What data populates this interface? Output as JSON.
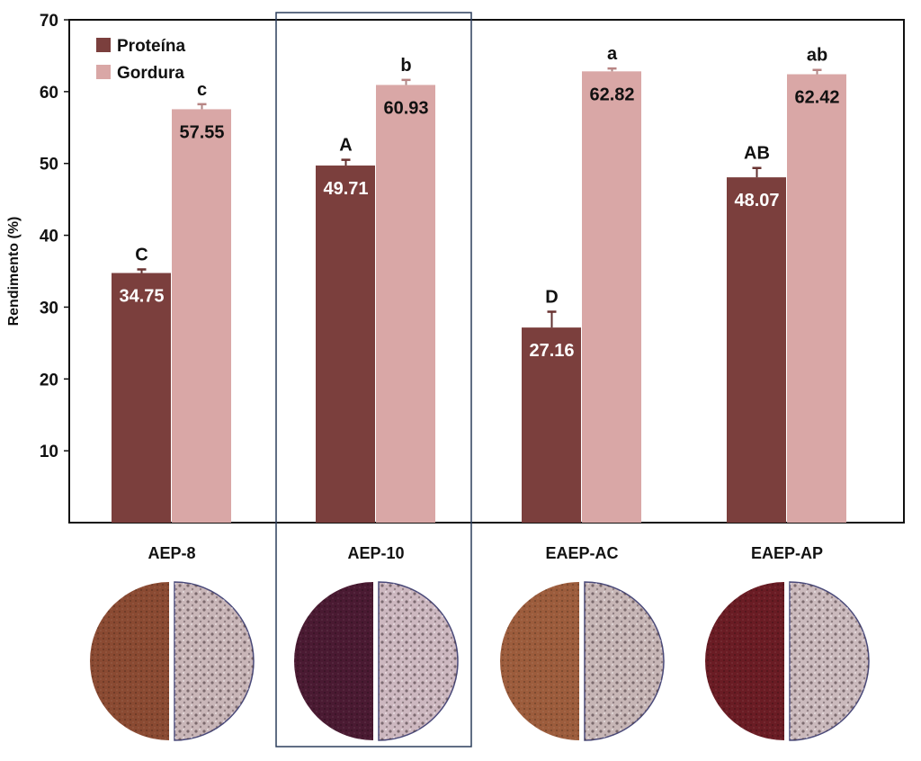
{
  "chart_data": {
    "type": "bar",
    "title": "",
    "xlabel": "",
    "ylabel": "Rendimento (%)",
    "ylim": [
      0,
      70
    ],
    "yticks": [
      10,
      20,
      30,
      40,
      50,
      60,
      70
    ],
    "categories": [
      "AEP-8",
      "AEP-10",
      "EAEP-AC",
      "EAEP-AP"
    ],
    "highlighted_category": "AEP-10",
    "legend_position": "top-left",
    "series": [
      {
        "name": "Proteína",
        "color": "#7b3f3d",
        "values": [
          34.75,
          49.71,
          27.16,
          48.07
        ],
        "errors": [
          0.5,
          0.8,
          2.2,
          1.3
        ],
        "value_labels": [
          "34.75",
          "49.71",
          "27.16",
          "48.07"
        ],
        "letters": [
          "C",
          "A",
          "D",
          "AB"
        ],
        "label_color": "#ffffff"
      },
      {
        "name": "Gordura",
        "color": "#d9a7a6",
        "values": [
          57.55,
          60.93,
          62.82,
          62.42
        ],
        "errors": [
          0.7,
          0.7,
          0.4,
          0.6
        ],
        "value_labels": [
          "57.55",
          "60.93",
          "62.82",
          "62.42"
        ],
        "letters": [
          "c",
          "b",
          "a",
          "ab"
        ],
        "label_color": "#111111"
      }
    ],
    "sample_photos": [
      {
        "category": "AEP-8",
        "protein_color": "#8a4a32",
        "fat_color": "#c9b6b8"
      },
      {
        "category": "AEP-10",
        "protein_color": "#4a1a32",
        "fat_color": "#cdb8c0"
      },
      {
        "category": "EAEP-AC",
        "protein_color": "#9c5c3c",
        "fat_color": "#c7b6b6"
      },
      {
        "category": "EAEP-AP",
        "protein_color": "#6a1c24",
        "fat_color": "#cbbabd"
      }
    ]
  }
}
